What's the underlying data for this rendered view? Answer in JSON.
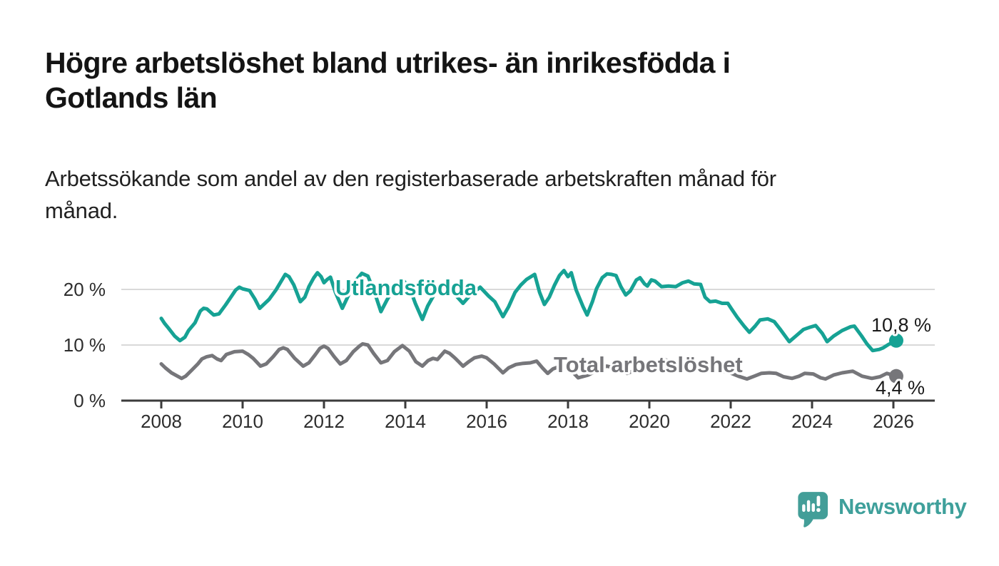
{
  "header": {
    "title_line1": "Högre arbetslöshet bland utrikes- än inrikesfödda i",
    "title_line2": "Gotlands län",
    "subtitle_line1": "Arbetssökande som andel av den registerbaserade arbetskraften månad för",
    "subtitle_line2": "månad."
  },
  "branding": {
    "wordmark": "Newsworthy",
    "logo_icon": "speech-bubble-bar-chart",
    "brand_color": "#439e98"
  },
  "colors": {
    "foreign_series": "#16a294",
    "total_series": "#76767a",
    "axis": "#3b3b3b",
    "gridline": "#d9d9d9",
    "label_text": "#1a1a1a"
  },
  "chart_data": {
    "type": "line",
    "title": "Högre arbetslöshet bland utrikes- än inrikesfödda i Gotlands län",
    "subtitle": "Arbetssökande som andel av den registerbaserade arbetskraften månad för månad.",
    "xlabel": "",
    "ylabel": "",
    "x_unit": "year (monthly observations)",
    "xlim": [
      2007.0,
      2027.0
    ],
    "ylim": [
      0,
      24
    ],
    "grid": "horizontal",
    "legend_position": "inline-on-line",
    "x_ticks": [
      2008,
      2010,
      2012,
      2014,
      2016,
      2018,
      2020,
      2022,
      2024,
      2026
    ],
    "y_ticks": [
      {
        "label": "0 %",
        "value": 0
      },
      {
        "label": "10 %",
        "value": 10
      },
      {
        "label": "20 %",
        "value": 20
      }
    ],
    "series": [
      {
        "id": "utlandsfodda",
        "name": "Utlandsfödda",
        "color": "#16a294",
        "end_value": 10.8,
        "end_label": "10,8 %",
        "points": [
          [
            2008.0,
            14.8
          ],
          [
            2008.08,
            13.9
          ],
          [
            2008.17,
            13.1
          ],
          [
            2008.33,
            11.6
          ],
          [
            2008.46,
            10.8
          ],
          [
            2008.58,
            11.4
          ],
          [
            2008.67,
            12.6
          ],
          [
            2008.83,
            14.0
          ],
          [
            2008.96,
            16.1
          ],
          [
            2009.04,
            16.6
          ],
          [
            2009.12,
            16.5
          ],
          [
            2009.29,
            15.4
          ],
          [
            2009.42,
            15.6
          ],
          [
            2009.58,
            17.2
          ],
          [
            2009.71,
            18.6
          ],
          [
            2009.83,
            19.9
          ],
          [
            2009.92,
            20.4
          ],
          [
            2010.0,
            20.1
          ],
          [
            2010.17,
            19.8
          ],
          [
            2010.3,
            18.3
          ],
          [
            2010.42,
            16.6
          ],
          [
            2010.65,
            18.2
          ],
          [
            2010.82,
            19.9
          ],
          [
            2011.05,
            22.7
          ],
          [
            2011.14,
            22.3
          ],
          [
            2011.26,
            20.8
          ],
          [
            2011.42,
            17.8
          ],
          [
            2011.53,
            18.6
          ],
          [
            2011.63,
            20.5
          ],
          [
            2011.75,
            22.1
          ],
          [
            2011.84,
            23.0
          ],
          [
            2011.93,
            22.3
          ],
          [
            2012.0,
            21.2
          ],
          [
            2012.08,
            21.8
          ],
          [
            2012.16,
            22.2
          ],
          [
            2012.28,
            19.5
          ],
          [
            2012.45,
            16.6
          ],
          [
            2012.58,
            18.6
          ],
          [
            2012.75,
            21.3
          ],
          [
            2012.93,
            22.9
          ],
          [
            2013.08,
            22.4
          ],
          [
            2013.25,
            19.3
          ],
          [
            2013.4,
            16.0
          ],
          [
            2013.55,
            18.1
          ],
          [
            2013.75,
            20.6
          ],
          [
            2013.95,
            21.6
          ],
          [
            2014.1,
            20.4
          ],
          [
            2014.25,
            17.4
          ],
          [
            2014.42,
            14.6
          ],
          [
            2014.55,
            17.0
          ],
          [
            2014.75,
            19.6
          ],
          [
            2014.95,
            21.0
          ],
          [
            2015.1,
            20.3
          ],
          [
            2015.28,
            18.6
          ],
          [
            2015.42,
            17.5
          ],
          [
            2015.6,
            19.0
          ],
          [
            2015.84,
            20.4
          ],
          [
            2016.05,
            18.8
          ],
          [
            2016.2,
            17.8
          ],
          [
            2016.4,
            15.1
          ],
          [
            2016.54,
            16.9
          ],
          [
            2016.7,
            19.5
          ],
          [
            2016.84,
            20.8
          ],
          [
            2016.98,
            21.8
          ],
          [
            2017.18,
            22.7
          ],
          [
            2017.3,
            19.5
          ],
          [
            2017.42,
            17.3
          ],
          [
            2017.54,
            18.6
          ],
          [
            2017.67,
            20.8
          ],
          [
            2017.79,
            22.5
          ],
          [
            2017.9,
            23.4
          ],
          [
            2018.0,
            22.3
          ],
          [
            2018.08,
            23.0
          ],
          [
            2018.2,
            19.9
          ],
          [
            2018.37,
            16.9
          ],
          [
            2018.47,
            15.4
          ],
          [
            2018.6,
            17.8
          ],
          [
            2018.7,
            20.1
          ],
          [
            2018.84,
            22.1
          ],
          [
            2018.96,
            22.8
          ],
          [
            2019.07,
            22.7
          ],
          [
            2019.18,
            22.5
          ],
          [
            2019.3,
            20.5
          ],
          [
            2019.42,
            19.0
          ],
          [
            2019.53,
            19.7
          ],
          [
            2019.68,
            21.7
          ],
          [
            2019.77,
            22.1
          ],
          [
            2019.88,
            21.0
          ],
          [
            2019.95,
            20.6
          ],
          [
            2020.05,
            21.7
          ],
          [
            2020.14,
            21.5
          ],
          [
            2020.3,
            20.5
          ],
          [
            2020.47,
            20.6
          ],
          [
            2020.65,
            20.5
          ],
          [
            2020.82,
            21.2
          ],
          [
            2020.96,
            21.5
          ],
          [
            2021.1,
            21.0
          ],
          [
            2021.26,
            20.9
          ],
          [
            2021.37,
            18.6
          ],
          [
            2021.49,
            17.8
          ],
          [
            2021.63,
            17.9
          ],
          [
            2021.79,
            17.5
          ],
          [
            2021.93,
            17.5
          ],
          [
            2022.02,
            16.5
          ],
          [
            2022.16,
            15.0
          ],
          [
            2022.33,
            13.4
          ],
          [
            2022.46,
            12.3
          ],
          [
            2022.6,
            13.4
          ],
          [
            2022.72,
            14.5
          ],
          [
            2022.91,
            14.7
          ],
          [
            2023.07,
            14.2
          ],
          [
            2023.21,
            12.9
          ],
          [
            2023.44,
            10.6
          ],
          [
            2023.6,
            11.6
          ],
          [
            2023.79,
            12.8
          ],
          [
            2023.95,
            13.2
          ],
          [
            2024.09,
            13.5
          ],
          [
            2024.25,
            12.1
          ],
          [
            2024.37,
            10.6
          ],
          [
            2024.53,
            11.6
          ],
          [
            2024.74,
            12.6
          ],
          [
            2024.95,
            13.3
          ],
          [
            2025.04,
            13.4
          ],
          [
            2025.21,
            11.7
          ],
          [
            2025.35,
            10.2
          ],
          [
            2025.49,
            9.0
          ],
          [
            2025.65,
            9.2
          ],
          [
            2025.75,
            9.5
          ],
          [
            2025.88,
            10.1
          ],
          [
            2026.07,
            10.8
          ]
        ]
      },
      {
        "id": "total-arbetsloshet",
        "name": "Total arbetslöshet",
        "color": "#76767a",
        "end_value": 4.4,
        "end_label": "4,4 %",
        "points": [
          [
            2008.0,
            6.6
          ],
          [
            2008.1,
            5.9
          ],
          [
            2008.25,
            5.0
          ],
          [
            2008.4,
            4.4
          ],
          [
            2008.5,
            4.0
          ],
          [
            2008.6,
            4.4
          ],
          [
            2008.75,
            5.5
          ],
          [
            2008.9,
            6.6
          ],
          [
            2009.0,
            7.5
          ],
          [
            2009.12,
            7.9
          ],
          [
            2009.25,
            8.1
          ],
          [
            2009.37,
            7.5
          ],
          [
            2009.47,
            7.2
          ],
          [
            2009.6,
            8.3
          ],
          [
            2009.8,
            8.8
          ],
          [
            2010.0,
            8.9
          ],
          [
            2010.14,
            8.3
          ],
          [
            2010.26,
            7.6
          ],
          [
            2010.44,
            6.2
          ],
          [
            2010.58,
            6.6
          ],
          [
            2010.75,
            7.9
          ],
          [
            2010.9,
            9.2
          ],
          [
            2011.0,
            9.5
          ],
          [
            2011.1,
            9.2
          ],
          [
            2011.28,
            7.6
          ],
          [
            2011.49,
            6.2
          ],
          [
            2011.63,
            6.8
          ],
          [
            2011.79,
            8.3
          ],
          [
            2011.9,
            9.4
          ],
          [
            2012.0,
            9.8
          ],
          [
            2012.1,
            9.4
          ],
          [
            2012.25,
            7.9
          ],
          [
            2012.4,
            6.6
          ],
          [
            2012.55,
            7.2
          ],
          [
            2012.72,
            8.8
          ],
          [
            2012.87,
            9.8
          ],
          [
            2012.95,
            10.2
          ],
          [
            2013.08,
            10.0
          ],
          [
            2013.22,
            8.5
          ],
          [
            2013.4,
            6.8
          ],
          [
            2013.56,
            7.2
          ],
          [
            2013.73,
            8.8
          ],
          [
            2013.93,
            9.9
          ],
          [
            2014.1,
            8.9
          ],
          [
            2014.26,
            7.0
          ],
          [
            2014.42,
            6.2
          ],
          [
            2014.56,
            7.2
          ],
          [
            2014.68,
            7.6
          ],
          [
            2014.79,
            7.4
          ],
          [
            2014.97,
            8.9
          ],
          [
            2015.09,
            8.5
          ],
          [
            2015.23,
            7.6
          ],
          [
            2015.42,
            6.2
          ],
          [
            2015.56,
            7.0
          ],
          [
            2015.7,
            7.7
          ],
          [
            2015.88,
            8.0
          ],
          [
            2016.0,
            7.7
          ],
          [
            2016.18,
            6.6
          ],
          [
            2016.4,
            5.0
          ],
          [
            2016.54,
            5.9
          ],
          [
            2016.72,
            6.5
          ],
          [
            2016.9,
            6.7
          ],
          [
            2017.07,
            6.8
          ],
          [
            2017.23,
            7.1
          ],
          [
            2017.37,
            5.9
          ],
          [
            2017.5,
            4.9
          ],
          [
            2017.63,
            5.7
          ],
          [
            2017.85,
            6.3
          ],
          [
            2018.0,
            6.0
          ],
          [
            2018.25,
            4.1
          ],
          [
            2018.5,
            4.6
          ],
          [
            2018.75,
            5.6
          ],
          [
            2018.95,
            6.2
          ],
          [
            2019.2,
            5.8
          ],
          [
            2019.45,
            4.9
          ],
          [
            2019.7,
            5.6
          ],
          [
            2019.95,
            6.3
          ],
          [
            2020.2,
            6.8
          ],
          [
            2020.4,
            7.3
          ],
          [
            2020.6,
            7.0
          ],
          [
            2020.9,
            7.0
          ],
          [
            2021.1,
            6.8
          ],
          [
            2021.4,
            5.9
          ],
          [
            2021.7,
            5.4
          ],
          [
            2021.95,
            5.1
          ],
          [
            2022.19,
            4.4
          ],
          [
            2022.4,
            3.9
          ],
          [
            2022.58,
            4.4
          ],
          [
            2022.75,
            4.9
          ],
          [
            2022.95,
            5.0
          ],
          [
            2023.12,
            4.9
          ],
          [
            2023.3,
            4.3
          ],
          [
            2023.51,
            4.0
          ],
          [
            2023.68,
            4.4
          ],
          [
            2023.82,
            4.9
          ],
          [
            2024.03,
            4.8
          ],
          [
            2024.21,
            4.1
          ],
          [
            2024.33,
            3.9
          ],
          [
            2024.53,
            4.6
          ],
          [
            2024.74,
            5.0
          ],
          [
            2025.0,
            5.3
          ],
          [
            2025.23,
            4.4
          ],
          [
            2025.47,
            4.0
          ],
          [
            2025.67,
            4.3
          ],
          [
            2025.84,
            4.9
          ],
          [
            2026.07,
            4.4
          ]
        ]
      }
    ]
  }
}
